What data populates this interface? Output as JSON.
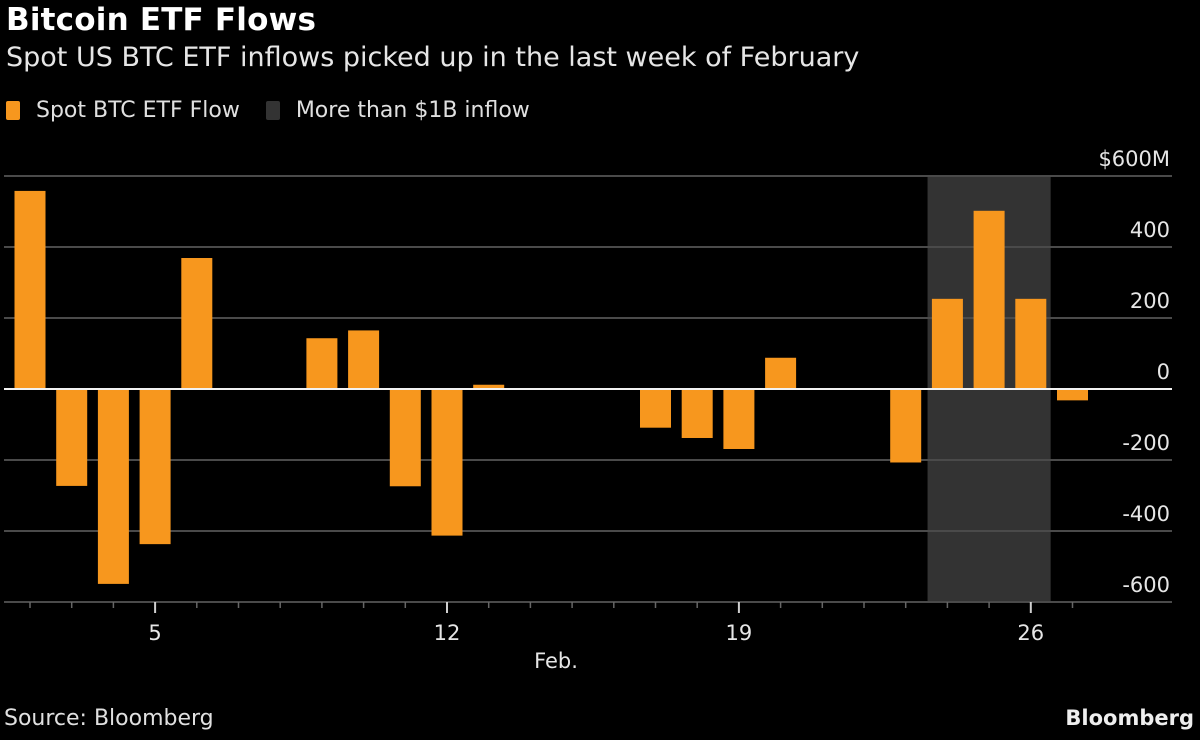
{
  "header": {
    "title": "Bitcoin ETF Flows",
    "subtitle": "Spot US BTC ETF inflows picked up in the last week of February"
  },
  "legend": [
    {
      "label": "Spot BTC ETF Flow",
      "color": "#f7971e"
    },
    {
      "label": "More than $1B inflow",
      "color": "#333333"
    }
  ],
  "footer": {
    "source": "Source: Bloomberg",
    "brand": "Bloomberg"
  },
  "chart_data": {
    "type": "bar",
    "title": "Bitcoin ETF Flows",
    "subtitle": "Spot US BTC ETF inflows picked up in the last week of February",
    "xlabel": "Feb.",
    "ylabel": "$M",
    "ylim": [
      -600,
      600
    ],
    "yticks": [
      600,
      400,
      200,
      0,
      -200,
      -400,
      -600
    ],
    "ytick_labels": [
      "$600M",
      "400",
      "200",
      "0",
      "-200",
      "-400",
      "-600"
    ],
    "x_slots": 26,
    "xtick_labels": [
      {
        "slot": 3,
        "label": "5"
      },
      {
        "slot": 10,
        "label": "12"
      },
      {
        "slot": 17,
        "label": "19"
      },
      {
        "slot": 24,
        "label": "26"
      }
    ],
    "grid": true,
    "legend_position": "top-left",
    "series": [
      {
        "name": "Spot BTC ETF Flow",
        "color": "#f7971e",
        "points": [
          {
            "slot": 0,
            "value": 558
          },
          {
            "slot": 1,
            "value": -273
          },
          {
            "slot": 2,
            "value": -549
          },
          {
            "slot": 3,
            "value": -437
          },
          {
            "slot": 4,
            "value": 369
          },
          {
            "slot": 7,
            "value": 143
          },
          {
            "slot": 8,
            "value": 165
          },
          {
            "slot": 9,
            "value": -274
          },
          {
            "slot": 10,
            "value": -413
          },
          {
            "slot": 11,
            "value": 12
          },
          {
            "slot": 15,
            "value": -109
          },
          {
            "slot": 16,
            "value": -138
          },
          {
            "slot": 17,
            "value": -169
          },
          {
            "slot": 18,
            "value": 88
          },
          {
            "slot": 21,
            "value": -207
          },
          {
            "slot": 22,
            "value": 254
          },
          {
            "slot": 23,
            "value": 502
          },
          {
            "slot": 24,
            "value": 254
          },
          {
            "slot": 25,
            "value": -32
          }
        ]
      }
    ],
    "highlight": {
      "name": "More than $1B inflow",
      "from_slot": 22,
      "to_slot": 24,
      "color": "#333333"
    }
  }
}
